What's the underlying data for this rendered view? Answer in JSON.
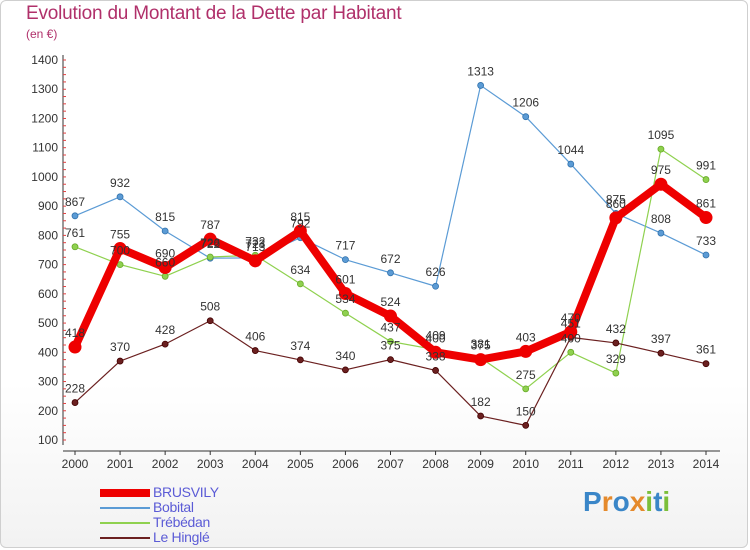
{
  "header": {
    "title": "Evolution du Montant de la Dette par Habitant",
    "subtitle": "(en €)"
  },
  "logo": {
    "text": "Proxiti",
    "letters": [
      {
        "ch": "P",
        "color": "#3a86c8"
      },
      {
        "ch": "r",
        "color": "#e58a2c"
      },
      {
        "ch": "o",
        "color": "#3a86c8"
      },
      {
        "ch": "x",
        "color": "#e58a2c"
      },
      {
        "ch": "i",
        "color": "#7cbf3a"
      },
      {
        "ch": "t",
        "color": "#3a86c8"
      },
      {
        "ch": "i",
        "color": "#7cbf3a"
      }
    ]
  },
  "chart_data": {
    "type": "line",
    "x": [
      "2000",
      "2001",
      "2002",
      "2003",
      "2004",
      "2005",
      "2006",
      "2007",
      "2008",
      "2009",
      "2010",
      "2011",
      "2012",
      "2013",
      "2014"
    ],
    "ylim": [
      100,
      1400
    ],
    "yticks": [
      100,
      200,
      300,
      400,
      500,
      600,
      700,
      800,
      900,
      1000,
      1100,
      1200,
      1300,
      1400
    ],
    "grid": false,
    "legend_position": "bottom-left",
    "series": [
      {
        "name": "Bobital",
        "color": "#5b9bd5",
        "width": 1.2,
        "values": [
          867,
          932,
          815,
          722,
          723,
          792,
          717,
          672,
          626,
          1313,
          1206,
          1044,
          875,
          808,
          733
        ]
      },
      {
        "name": "Trébédan",
        "color": "#8fd14f",
        "width": 1.2,
        "values": [
          761,
          700,
          660,
          726,
          732,
          634,
          534,
          437,
          409,
          381,
          275,
          400,
          329,
          1095,
          991
        ]
      },
      {
        "name": "Le Hinglé",
        "color": "#6b2020",
        "width": 1.2,
        "values": [
          228,
          370,
          428,
          508,
          406,
          374,
          340,
          375,
          338,
          182,
          150,
          451,
          432,
          397,
          361
        ]
      },
      {
        "name": "BRUSVILY",
        "color": "#ee0000",
        "width": 8,
        "values": [
          418,
          755,
          690,
          787,
          713,
          815,
          601,
          524,
          400,
          375,
          403,
          470,
          860,
          975,
          861
        ]
      }
    ],
    "legend_order": [
      "BRUSVILY",
      "Bobital",
      "Trébédan",
      "Le Hinglé"
    ]
  }
}
